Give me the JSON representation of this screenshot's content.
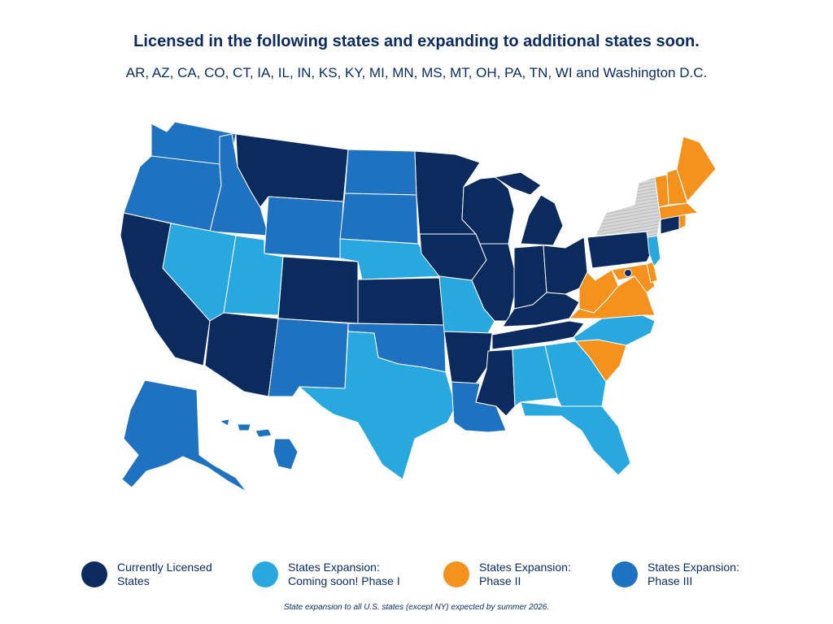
{
  "header": {
    "title": "Licensed in the following states and expanding to additional states soon.",
    "subtitle": "AR, AZ, CA, CO, CT, IA, IL, IN, KS, KY, MI, MN, MS, MT, OH, PA, TN, WI and Washington D.C."
  },
  "colors": {
    "licensed": "#0b2a5e",
    "phase1": "#29a8e0",
    "phase2": "#f5921e",
    "phase3": "#1f72c0",
    "excluded": "#c8c8c8"
  },
  "state_status": {
    "licensed": [
      "MT",
      "MN",
      "WI",
      "MI",
      "IA",
      "IL",
      "IN",
      "OH",
      "PA",
      "CA",
      "AZ",
      "CO",
      "KS",
      "AR",
      "MS",
      "TN",
      "KY",
      "CT",
      "DC"
    ],
    "phase1": [
      "NV",
      "UT",
      "NE",
      "MO",
      "TX",
      "AL",
      "GA",
      "FL",
      "NC",
      "NJ"
    ],
    "phase2": [
      "ME",
      "NH",
      "VT",
      "MA",
      "RI",
      "VA",
      "WV",
      "SC",
      "MD",
      "DE"
    ],
    "phase3": [
      "WA",
      "OR",
      "ID",
      "WY",
      "ND",
      "SD",
      "NM",
      "OK",
      "LA",
      "AK",
      "HI"
    ],
    "excluded": [
      "NY"
    ]
  },
  "legend": {
    "licensed": [
      "Currently Licensed",
      "States"
    ],
    "phase1": [
      "States Expansion:",
      "Coming soon! Phase I"
    ],
    "phase2": [
      "States Expansion:",
      "Phase II"
    ],
    "phase3": [
      "States Expansion:",
      "Phase III"
    ]
  },
  "footnote": "State expansion to all U.S. states (except NY) expected by summer 2026."
}
